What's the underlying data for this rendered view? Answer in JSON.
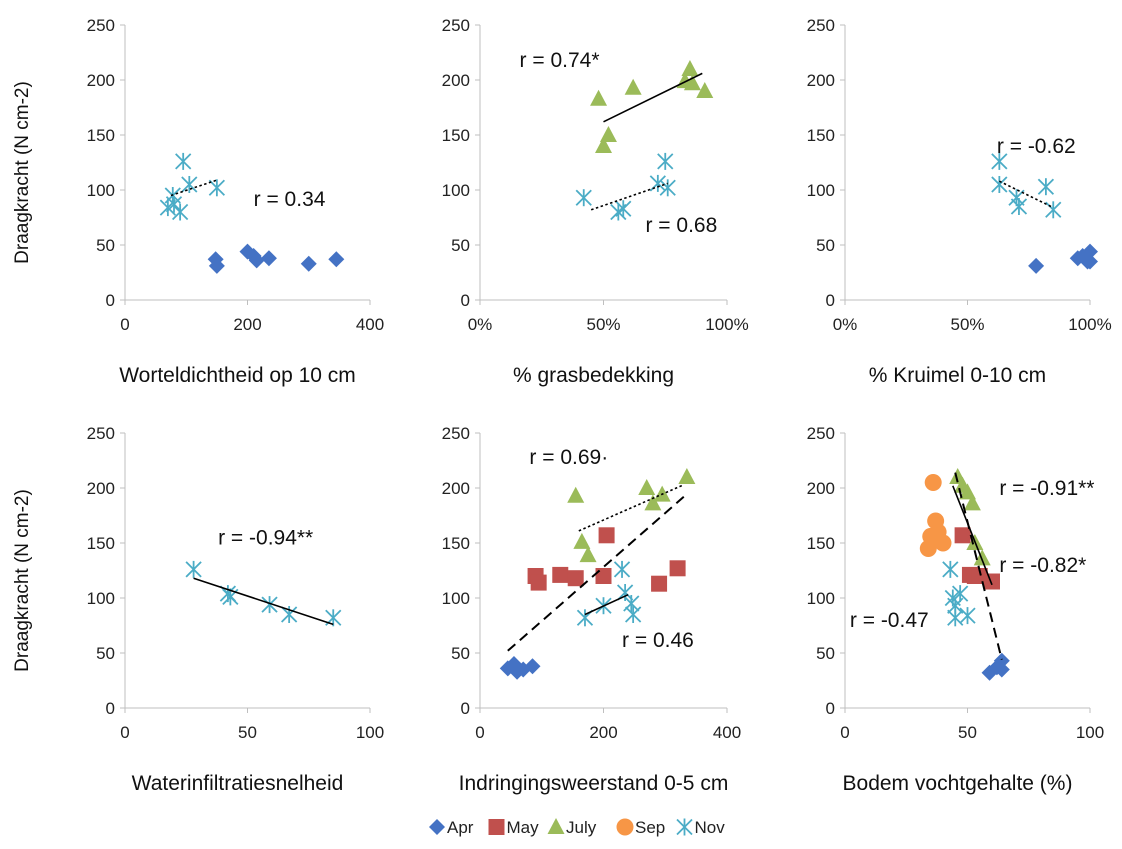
{
  "colors": {
    "Apr": "#4472C4",
    "May": "#C0504D",
    "July": "#9BBB59",
    "Sep": "#F79646",
    "Nov": "#4BACC6",
    "axis": "#bfbfbf",
    "trend": "#000000"
  },
  "legend": {
    "placement": "bottom-center",
    "items": [
      {
        "key": "Apr",
        "label": "Apr",
        "marker": "diamond"
      },
      {
        "key": "May",
        "label": "May",
        "marker": "square"
      },
      {
        "key": "July",
        "label": "July",
        "marker": "triangle"
      },
      {
        "key": "Sep",
        "label": "Sep",
        "marker": "circle"
      },
      {
        "key": "Nov",
        "label": "Nov",
        "marker": "asterisk"
      }
    ]
  },
  "chart_data": [
    {
      "type": "scatter",
      "xlabel": "Worteldichtheid op 10 cm",
      "ylabel": "Draagkracht (N cm-2)",
      "xlim": [
        0,
        400
      ],
      "ylim": [
        0,
        250
      ],
      "xticks": [
        0,
        200,
        400
      ],
      "xtick_labels": [
        "0",
        "200",
        "400"
      ],
      "yticks": [
        0,
        50,
        100,
        150,
        200,
        250
      ],
      "ytick_labels": [
        "0",
        "50",
        "100",
        "150",
        "200",
        "250"
      ],
      "series": [
        {
          "key": "Apr",
          "points": [
            [
              148,
              37
            ],
            [
              150,
              31
            ],
            [
              200,
              44
            ],
            [
              210,
              40
            ],
            [
              215,
              36
            ],
            [
              235,
              38
            ],
            [
              300,
              33
            ],
            [
              345,
              37
            ]
          ]
        },
        {
          "key": "Nov",
          "points": [
            [
              70,
              84
            ],
            [
              78,
              95
            ],
            [
              80,
              87
            ],
            [
              90,
              80
            ],
            [
              95,
              126
            ],
            [
              105,
              105
            ],
            [
              150,
              102
            ]
          ]
        }
      ],
      "trendlines": [
        {
          "from": [
            75,
            95
          ],
          "to": [
            150,
            109
          ],
          "style": "dotted"
        }
      ],
      "annotations": [
        {
          "text": "r = 0.34",
          "x": 210,
          "y": 92
        }
      ]
    },
    {
      "type": "scatter",
      "ylabel": "",
      "xlabel": "% grasbedekking",
      "xlim": [
        0,
        100
      ],
      "ylim": [
        0,
        250
      ],
      "xticks": [
        0,
        50,
        100
      ],
      "xtick_labels": [
        "0%",
        "50%",
        "100%"
      ],
      "yticks": [
        0,
        50,
        100,
        150,
        200,
        250
      ],
      "ytick_labels": [
        "0",
        "50",
        "100",
        "150",
        "200",
        "250"
      ],
      "series": [
        {
          "key": "July",
          "points": [
            [
              48,
              183
            ],
            [
              50,
              140
            ],
            [
              52,
              150
            ],
            [
              62,
              193
            ],
            [
              83,
              199
            ],
            [
              85,
              210
            ],
            [
              86,
              197
            ],
            [
              91,
              190
            ]
          ]
        },
        {
          "key": "Nov",
          "points": [
            [
              42,
              93
            ],
            [
              56,
              80
            ],
            [
              58,
              83
            ],
            [
              72,
              106
            ],
            [
              75,
              126
            ],
            [
              76,
              102
            ]
          ]
        }
      ],
      "trendlines": [
        {
          "from": [
            50,
            162
          ],
          "to": [
            90,
            206
          ],
          "style": "solid"
        },
        {
          "from": [
            45,
            82
          ],
          "to": [
            76,
            106
          ],
          "style": "dotted"
        }
      ],
      "annotations": [
        {
          "text": "r = 0.74*",
          "x": 16,
          "y": 218
        },
        {
          "text": "r = 0.68",
          "x": 67,
          "y": 68
        }
      ]
    },
    {
      "type": "scatter",
      "ylabel": "",
      "xlabel": "% Kruimel 0-10 cm",
      "xlim": [
        0,
        100
      ],
      "ylim": [
        0,
        250
      ],
      "xticks": [
        0,
        50,
        100
      ],
      "xtick_labels": [
        "0%",
        "50%",
        "100%"
      ],
      "yticks": [
        0,
        50,
        100,
        150,
        200,
        250
      ],
      "ytick_labels": [
        "0",
        "50",
        "100",
        "150",
        "200",
        "250"
      ],
      "series": [
        {
          "key": "Apr",
          "points": [
            [
              78,
              31
            ],
            [
              95,
              38
            ],
            [
              97,
              40
            ],
            [
              99,
              35
            ],
            [
              100,
              44
            ],
            [
              100,
              35
            ]
          ]
        },
        {
          "key": "Nov",
          "points": [
            [
              63,
              126
            ],
            [
              63,
              105
            ],
            [
              70,
              93
            ],
            [
              71,
              85
            ],
            [
              82,
              103
            ],
            [
              85,
              82
            ]
          ]
        }
      ],
      "trendlines": [
        {
          "from": [
            63,
            108
          ],
          "to": [
            85,
            84
          ],
          "style": "dotted"
        }
      ],
      "annotations": [
        {
          "text": "r = -0.62",
          "x": 62,
          "y": 140
        }
      ]
    },
    {
      "type": "scatter",
      "ylabel": "Draagkracht (N cm-2)",
      "xlabel": "Waterinfiltratiesnelheid",
      "xlim": [
        0,
        100
      ],
      "ylim": [
        0,
        250
      ],
      "xticks": [
        0,
        50,
        100
      ],
      "xtick_labels": [
        "0",
        "50",
        "100"
      ],
      "yticks": [
        0,
        50,
        100,
        150,
        200,
        250
      ],
      "ytick_labels": [
        "0",
        "50",
        "100",
        "150",
        "200",
        "250"
      ],
      "series": [
        {
          "key": "Nov",
          "points": [
            [
              28,
              126
            ],
            [
              42,
              104
            ],
            [
              43,
              101
            ],
            [
              59,
              94
            ],
            [
              67,
              85
            ],
            [
              85,
              82
            ]
          ]
        }
      ],
      "trendlines": [
        {
          "from": [
            28,
            118
          ],
          "to": [
            85,
            76
          ],
          "style": "solid"
        }
      ],
      "annotations": [
        {
          "text": "r = -0.94**",
          "x": 38,
          "y": 155
        }
      ]
    },
    {
      "type": "scatter",
      "ylabel": "",
      "xlabel": "Indringingsweerstand 0-5 cm",
      "xlim": [
        0,
        400
      ],
      "ylim": [
        0,
        250
      ],
      "xticks": [
        0,
        200,
        400
      ],
      "xtick_labels": [
        "0",
        "200",
        "400"
      ],
      "yticks": [
        0,
        50,
        100,
        150,
        200,
        250
      ],
      "ytick_labels": [
        "0",
        "50",
        "100",
        "150",
        "200",
        "250"
      ],
      "series": [
        {
          "key": "Apr",
          "points": [
            [
              45,
              36
            ],
            [
              55,
              40
            ],
            [
              60,
              33
            ],
            [
              70,
              35
            ],
            [
              85,
              38
            ]
          ]
        },
        {
          "key": "May",
          "points": [
            [
              90,
              120
            ],
            [
              95,
              114
            ],
            [
              130,
              121
            ],
            [
              155,
              118
            ],
            [
              200,
              120
            ],
            [
              205,
              157
            ],
            [
              290,
              113
            ],
            [
              320,
              127
            ]
          ]
        },
        {
          "key": "July",
          "points": [
            [
              155,
              193
            ],
            [
              165,
              151
            ],
            [
              175,
              139
            ],
            [
              270,
              200
            ],
            [
              280,
              186
            ],
            [
              295,
              194
            ],
            [
              335,
              210
            ]
          ]
        },
        {
          "key": "Nov",
          "points": [
            [
              170,
              82
            ],
            [
              200,
              93
            ],
            [
              230,
              126
            ],
            [
              235,
              105
            ],
            [
              245,
              95
            ],
            [
              248,
              85
            ]
          ]
        }
      ],
      "trendlines": [
        {
          "from": [
            45,
            52
          ],
          "to": [
            330,
            192
          ],
          "style": "dashed"
        },
        {
          "from": [
            160,
            161
          ],
          "to": [
            330,
            203
          ],
          "style": "dotted"
        },
        {
          "from": [
            170,
            85
          ],
          "to": [
            240,
            103
          ],
          "style": "solid"
        }
      ],
      "annotations": [
        {
          "text": "r = 0.69·",
          "x": 80,
          "y": 228
        },
        {
          "text": "r = 0.46",
          "x": 230,
          "y": 62
        }
      ]
    },
    {
      "type": "scatter",
      "ylabel": "",
      "xlabel": "Bodem vochtgehalte (%)",
      "xlim": [
        0,
        100
      ],
      "ylim": [
        0,
        250
      ],
      "xticks": [
        0,
        50,
        100
      ],
      "xtick_labels": [
        "0",
        "50",
        "100"
      ],
      "yticks": [
        0,
        50,
        100,
        150,
        200,
        250
      ],
      "ytick_labels": [
        "0",
        "50",
        "100",
        "150",
        "200",
        "250"
      ],
      "series": [
        {
          "key": "Apr",
          "points": [
            [
              59,
              32
            ],
            [
              62,
              37
            ],
            [
              64,
              43
            ],
            [
              64,
              35
            ]
          ]
        },
        {
          "key": "May",
          "points": [
            [
              48,
              157
            ],
            [
              51,
              121
            ],
            [
              53,
              120
            ],
            [
              55,
              120
            ],
            [
              60,
              115
            ]
          ]
        },
        {
          "key": "July",
          "points": [
            [
              46,
              210
            ],
            [
              48,
              202
            ],
            [
              50,
              196
            ],
            [
              52,
              186
            ],
            [
              53,
              150
            ],
            [
              56,
              136
            ]
          ]
        },
        {
          "key": "Sep",
          "points": [
            [
              34,
              145
            ],
            [
              35,
              156
            ],
            [
              36,
              205
            ],
            [
              37,
              170
            ],
            [
              38,
              160
            ],
            [
              40,
              150
            ]
          ]
        },
        {
          "key": "Nov",
          "points": [
            [
              43,
              126
            ],
            [
              44,
              100
            ],
            [
              45,
              93
            ],
            [
              45,
              82
            ],
            [
              47,
              104
            ],
            [
              50,
              84
            ]
          ]
        }
      ],
      "trendlines": [
        {
          "from": [
            45,
            214
          ],
          "to": [
            64,
            44
          ],
          "style": "dashed"
        },
        {
          "from": [
            44,
            202
          ],
          "to": [
            60,
            112
          ],
          "style": "solid"
        }
      ],
      "annotations": [
        {
          "text": "r = -0.91**",
          "x": 63,
          "y": 200
        },
        {
          "text": "r = -0.82*",
          "x": 63,
          "y": 130
        },
        {
          "text": "r = -0.47",
          "x": 2,
          "y": 80
        }
      ]
    }
  ]
}
